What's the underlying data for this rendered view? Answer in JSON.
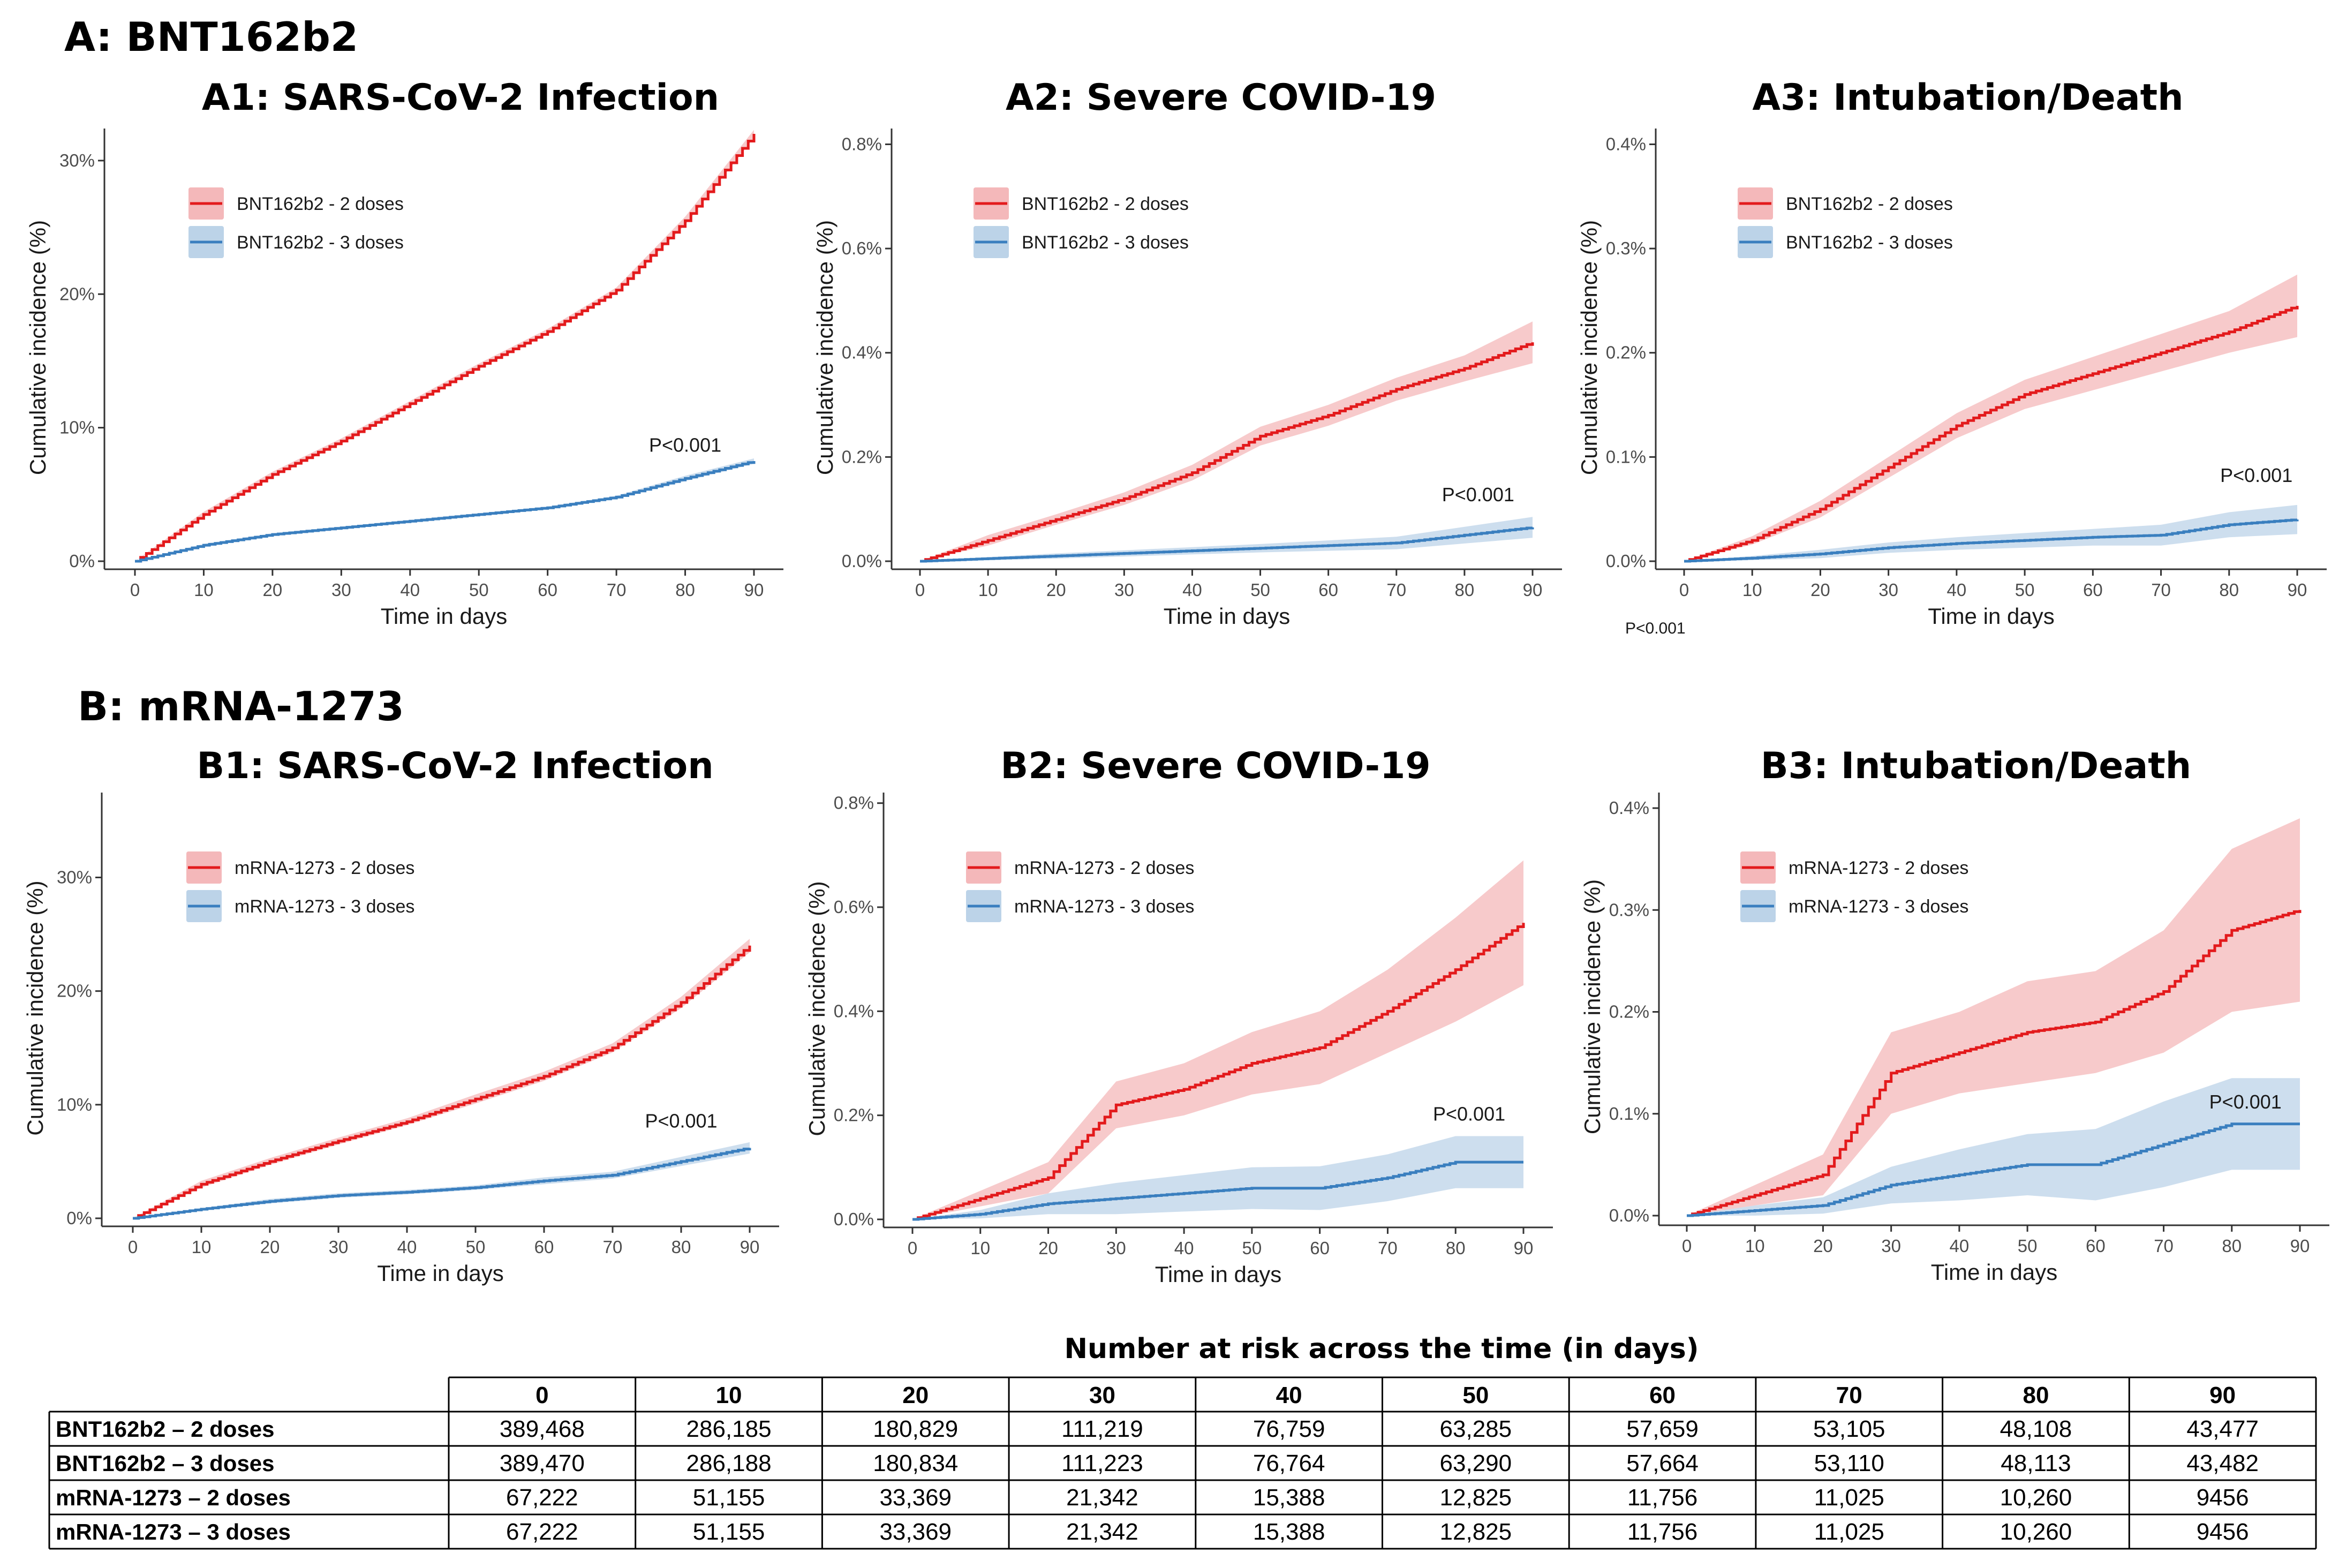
{
  "sections": [
    {
      "id": "A",
      "title": "A: BNT162b2"
    },
    {
      "id": "B",
      "title": "B: mRNA-1273"
    }
  ],
  "colors": {
    "two_doses": "#e31a1c",
    "two_doses_band": "#f4b8ba",
    "three_doses": "#3a7fbf",
    "three_doses_band": "#bcd3e8",
    "axis": "#333333"
  },
  "stray_label": "P<0.001",
  "chart_data": [
    {
      "id": "A1",
      "type": "line",
      "title": "A1: SARS-CoV-2 Infection",
      "xlabel": "Time in days",
      "ylabel": "Cumulative incidence (%)",
      "xlim": [
        0,
        90
      ],
      "xticks": [
        0,
        10,
        20,
        30,
        40,
        50,
        60,
        70,
        80,
        90
      ],
      "ylim": [
        0,
        0.32
      ],
      "yticks": [
        0,
        0.1,
        0.2,
        0.3
      ],
      "yticklabels": [
        "0%",
        "10%",
        "20%",
        "30%"
      ],
      "legend_position": "top-left",
      "pvalue": "P<0.001",
      "pvalue_anchor": [
        80,
        0.082
      ],
      "series": [
        {
          "name": "BNT162b2  -  2 doses",
          "color": "two_doses",
          "x": [
            0,
            10,
            20,
            30,
            40,
            50,
            60,
            70,
            80,
            90
          ],
          "y": [
            0,
            0.035,
            0.065,
            0.09,
            0.118,
            0.146,
            0.172,
            0.203,
            0.255,
            0.32
          ],
          "band": [
            0,
            0.002,
            0.002,
            0.002,
            0.002,
            0.002,
            0.002,
            0.002,
            0.003,
            0.003
          ]
        },
        {
          "name": "BNT162b2  -  3 doses",
          "color": "three_doses",
          "x": [
            0,
            10,
            20,
            30,
            40,
            50,
            60,
            70,
            80,
            90
          ],
          "y": [
            0,
            0.012,
            0.02,
            0.025,
            0.03,
            0.035,
            0.04,
            0.048,
            0.062,
            0.075
          ],
          "band": [
            0,
            0.001,
            0.001,
            0.001,
            0.001,
            0.001,
            0.001,
            0.001,
            0.002,
            0.002
          ]
        }
      ]
    },
    {
      "id": "A2",
      "type": "line",
      "title": "A2: Severe COVID-19",
      "xlabel": "Time in days",
      "ylabel": "Cumulative incidence (%)",
      "xlim": [
        0,
        90
      ],
      "xticks": [
        0,
        10,
        20,
        30,
        40,
        50,
        60,
        70,
        80,
        90
      ],
      "ylim": [
        0,
        0.0082
      ],
      "yticks": [
        0,
        0.002,
        0.004,
        0.006,
        0.008
      ],
      "yticklabels": [
        "0.0%",
        "0.2%",
        "0.4%",
        "0.6%",
        "0.8%"
      ],
      "legend_position": "top-left",
      "pvalue": "P<0.001",
      "pvalue_anchor": [
        82,
        0.00115
      ],
      "series": [
        {
          "name": "BNT162b2  -  2 doses",
          "color": "two_doses",
          "x": [
            0,
            10,
            20,
            30,
            40,
            50,
            60,
            70,
            80,
            90
          ],
          "y": [
            0,
            0.0004,
            0.0008,
            0.0012,
            0.0017,
            0.0024,
            0.0028,
            0.0033,
            0.0037,
            0.0042
          ],
          "band": [
            0,
            0.0001,
            0.0001,
            0.00012,
            0.00015,
            0.00018,
            0.0002,
            0.00022,
            0.00025,
            0.0004
          ]
        },
        {
          "name": "BNT162b2  -  3 doses",
          "color": "three_doses",
          "x": [
            0,
            10,
            20,
            30,
            40,
            50,
            60,
            70,
            80,
            90
          ],
          "y": [
            0,
            5e-05,
            0.0001,
            0.00015,
            0.0002,
            0.00025,
            0.0003,
            0.00035,
            0.0005,
            0.00065
          ],
          "band": [
            0,
            3e-05,
            5e-05,
            6e-05,
            7e-05,
            8e-05,
            0.0001,
            0.00012,
            0.00016,
            0.0002
          ]
        }
      ]
    },
    {
      "id": "A3",
      "type": "line",
      "title": "A3: Intubation/Death",
      "xlabel": "Time in days",
      "ylabel": "Cumulative incidence (%)",
      "xlim": [
        0,
        90
      ],
      "xticks": [
        0,
        10,
        20,
        30,
        40,
        50,
        60,
        70,
        80,
        90
      ],
      "ylim": [
        0,
        0.0041
      ],
      "yticks": [
        0,
        0.001,
        0.002,
        0.003,
        0.004
      ],
      "yticklabels": [
        "0.0%",
        "0.1%",
        "0.2%",
        "0.3%",
        "0.4%"
      ],
      "legend_position": "top-left",
      "pvalue": "P<0.001",
      "pvalue_anchor": [
        84,
        0.00076
      ],
      "series": [
        {
          "name": "BNT162b2  -  2 doses",
          "color": "two_doses",
          "x": [
            0,
            10,
            20,
            30,
            40,
            50,
            60,
            70,
            80,
            90
          ],
          "y": [
            0,
            0.0002,
            0.0005,
            0.0009,
            0.0013,
            0.0016,
            0.0018,
            0.002,
            0.0022,
            0.00245
          ],
          "band": [
            0,
            4e-05,
            8e-05,
            0.0001,
            0.00012,
            0.00014,
            0.00016,
            0.00018,
            0.0002,
            0.0003
          ]
        },
        {
          "name": "BNT162b2  -  3 doses",
          "color": "three_doses",
          "x": [
            0,
            10,
            20,
            30,
            40,
            50,
            60,
            70,
            80,
            90
          ],
          "y": [
            0,
            3e-05,
            7e-05,
            0.00013,
            0.00017,
            0.0002,
            0.00023,
            0.00025,
            0.00035,
            0.0004
          ],
          "band": [
            0,
            2e-05,
            4e-05,
            5e-05,
            6e-05,
            7e-05,
            8e-05,
            0.0001,
            0.00012,
            0.00014
          ]
        }
      ]
    },
    {
      "id": "B1",
      "type": "line",
      "title": "B1: SARS-CoV-2 Infection",
      "xlabel": "Time in days",
      "ylabel": "Cumulative incidence (%)",
      "xlim": [
        0,
        90
      ],
      "xticks": [
        0,
        10,
        20,
        30,
        40,
        50,
        60,
        70,
        80,
        90
      ],
      "ylim": [
        0,
        0.37
      ],
      "yticks": [
        0,
        0.1,
        0.2,
        0.3
      ],
      "yticklabels": [
        "0%",
        "10%",
        "20%",
        "30%"
      ],
      "legend_position": "top-left",
      "pvalue": "P<0.001",
      "pvalue_anchor": [
        80,
        0.08
      ],
      "series": [
        {
          "name": "mRNA-1273  -  2 doses",
          "color": "two_doses",
          "x": [
            0,
            10,
            20,
            30,
            40,
            50,
            60,
            70,
            80,
            90
          ],
          "y": [
            0,
            0.03,
            0.05,
            0.068,
            0.085,
            0.105,
            0.125,
            0.15,
            0.19,
            0.24
          ],
          "band": [
            0,
            0.003,
            0.003,
            0.003,
            0.003,
            0.004,
            0.004,
            0.004,
            0.005,
            0.006
          ]
        },
        {
          "name": "mRNA-1273  -  3 doses",
          "color": "three_doses",
          "x": [
            0,
            10,
            20,
            30,
            40,
            50,
            60,
            70,
            80,
            90
          ],
          "y": [
            0,
            0.008,
            0.015,
            0.02,
            0.023,
            0.027,
            0.033,
            0.038,
            0.05,
            0.062
          ],
          "band": [
            0,
            0.001,
            0.002,
            0.002,
            0.002,
            0.002,
            0.003,
            0.003,
            0.004,
            0.005
          ]
        }
      ]
    },
    {
      "id": "B2",
      "type": "line",
      "title": "B2: Severe COVID-19",
      "xlabel": "Time in days",
      "ylabel": "Cumulative incidence (%)",
      "xlim": [
        0,
        90
      ],
      "xticks": [
        0,
        10,
        20,
        30,
        40,
        50,
        60,
        70,
        80,
        90
      ],
      "ylim": [
        0,
        0.0081
      ],
      "yticks": [
        0,
        0.002,
        0.004,
        0.006,
        0.008
      ],
      "yticklabels": [
        "0.0%",
        "0.2%",
        "0.4%",
        "0.6%",
        "0.8%"
      ],
      "legend_position": "top-left",
      "pvalue": "P<0.001",
      "pvalue_anchor": [
        82,
        0.0019
      ],
      "series": [
        {
          "name": "mRNA-1273  -  2 doses",
          "color": "two_doses",
          "x": [
            0,
            10,
            20,
            30,
            40,
            50,
            60,
            70,
            80,
            90
          ],
          "y": [
            0,
            0.0004,
            0.0008,
            0.0022,
            0.0025,
            0.003,
            0.0033,
            0.004,
            0.0048,
            0.0057
          ],
          "band": [
            0,
            0.00015,
            0.0003,
            0.00045,
            0.0005,
            0.0006,
            0.0007,
            0.0008,
            0.001,
            0.0012
          ]
        },
        {
          "name": "mRNA-1273  -  3 doses",
          "color": "three_doses",
          "x": [
            0,
            10,
            20,
            30,
            40,
            50,
            60,
            70,
            80,
            90
          ],
          "y": [
            0,
            0.0001,
            0.0003,
            0.0004,
            0.0005,
            0.0006,
            0.0006,
            0.0008,
            0.0011,
            0.0011
          ],
          "band": [
            0,
            8e-05,
            0.0002,
            0.0003,
            0.00035,
            0.0004,
            0.00042,
            0.00045,
            0.0005,
            0.0005
          ]
        }
      ]
    },
    {
      "id": "B3",
      "type": "line",
      "title": "B3: Intubation/Death",
      "xlabel": "Time in days",
      "ylabel": "Cumulative incidence (%)",
      "xlim": [
        0,
        90
      ],
      "xticks": [
        0,
        10,
        20,
        30,
        40,
        50,
        60,
        70,
        80,
        90
      ],
      "ylim": [
        0,
        0.0041
      ],
      "yticks": [
        0,
        0.001,
        0.002,
        0.003,
        0.004
      ],
      "yticklabels": [
        "0.0%",
        "0.1%",
        "0.2%",
        "0.3%",
        "0.4%"
      ],
      "legend_position": "top-left",
      "pvalue": "P<0.001",
      "pvalue_anchor": [
        82,
        0.00105
      ],
      "series": [
        {
          "name": "mRNA-1273  -  2 doses",
          "color": "two_doses",
          "x": [
            0,
            10,
            20,
            30,
            40,
            50,
            60,
            70,
            80,
            90
          ],
          "y": [
            0,
            0.0002,
            0.0004,
            0.0014,
            0.0016,
            0.0018,
            0.0019,
            0.0022,
            0.0028,
            0.003
          ],
          "band": [
            0,
            0.0001,
            0.0002,
            0.0004,
            0.0004,
            0.0005,
            0.0005,
            0.0006,
            0.0008,
            0.0009
          ]
        },
        {
          "name": "mRNA-1273  -  3 doses",
          "color": "three_doses",
          "x": [
            0,
            10,
            20,
            30,
            40,
            50,
            60,
            70,
            80,
            90
          ],
          "y": [
            0,
            5e-05,
            0.0001,
            0.0003,
            0.0004,
            0.0005,
            0.0005,
            0.0007,
            0.0009,
            0.0009
          ],
          "band": [
            0,
            5e-05,
            8e-05,
            0.00018,
            0.00025,
            0.0003,
            0.00035,
            0.00042,
            0.00045,
            0.00045
          ]
        }
      ]
    }
  ],
  "risk_table": {
    "title": "Number at risk across the time (in days)",
    "columns": [
      "0",
      "10",
      "20",
      "30",
      "40",
      "50",
      "60",
      "70",
      "80",
      "90"
    ],
    "rows": [
      {
        "label": "BNT162b2 – 2 doses",
        "values": [
          "389,468",
          "286,185",
          "180,829",
          "111,219",
          "76,759",
          "63,285",
          "57,659",
          "53,105",
          "48,108",
          "43,477"
        ]
      },
      {
        "label": "BNT162b2 – 3 doses",
        "values": [
          "389,470",
          "286,188",
          "180,834",
          "111,223",
          "76,764",
          "63,290",
          "57,664",
          "53,110",
          "48,113",
          "43,482"
        ]
      },
      {
        "label": "mRNA-1273 – 2 doses",
        "values": [
          "67,222",
          "51,155",
          "33,369",
          "21,342",
          "15,388",
          "12,825",
          "11,756",
          "11,025",
          "10,260",
          "9456"
        ]
      },
      {
        "label": "mRNA-1273 – 3 doses",
        "values": [
          "67,222",
          "51,155",
          "33,369",
          "21,342",
          "15,388",
          "12,825",
          "11,756",
          "11,025",
          "10,260",
          "9456"
        ]
      }
    ]
  }
}
